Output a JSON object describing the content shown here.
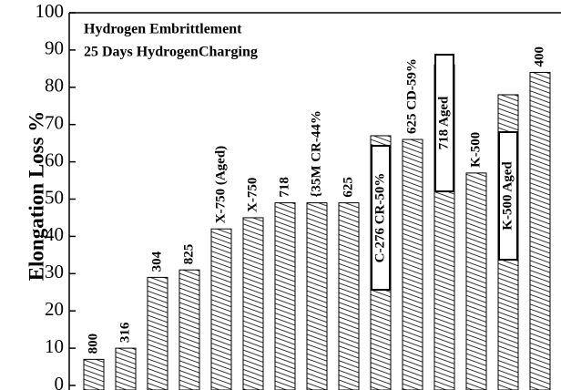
{
  "chart_data": {
    "type": "bar",
    "title": "Hydrogen Embrittlement",
    "subtitle": "25 Days HydrogenCharging",
    "y_label": "Elongation Loss %",
    "categories": [
      "800",
      "316",
      "304",
      "825",
      "X-750 (Aged)",
      "X-750",
      "718",
      "{35M CR-44%",
      "625",
      "C-276 CR-50%",
      "625 CD-59%",
      "718 Aged",
      "K-500",
      "K-500 Aged",
      "400"
    ],
    "values": [
      7,
      10,
      29,
      31,
      42,
      45,
      49,
      49,
      49,
      67,
      66,
      86,
      57,
      78,
      84
    ],
    "color": "#000000",
    "ylim": [
      0,
      100
    ],
    "yticks": [
      0,
      10,
      20,
      30,
      40,
      50,
      60,
      70,
      80,
      90,
      100
    ]
  }
}
